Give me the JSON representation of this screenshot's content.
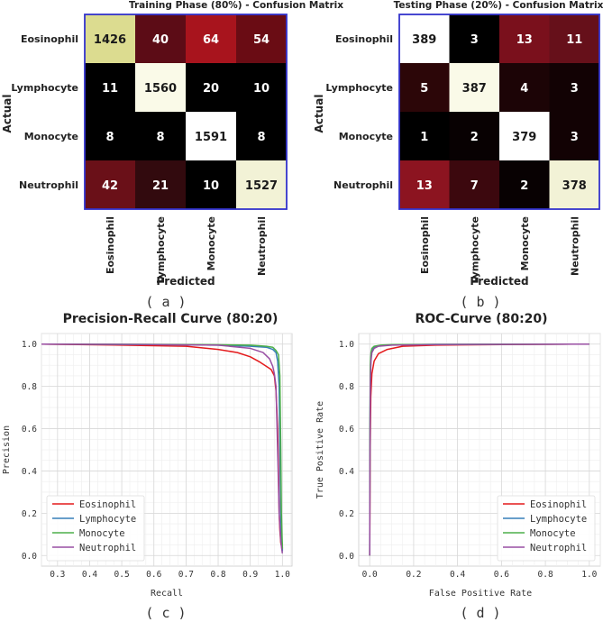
{
  "panel_labels": [
    "( a )",
    "( b )",
    "( c )",
    "( d )"
  ],
  "colors": {
    "eosinophil": "#e41a1c",
    "lymphocyte": "#377eb8",
    "monocyte": "#4daf4a",
    "neutrophil": "#984ea3",
    "matrix_border": "#3333cc"
  },
  "chart_data": [
    {
      "type": "heatmap",
      "title": "Training Phase (80%) - Confusion Matrix",
      "xlabel": "Predicted",
      "ylabel": "Actual",
      "row_labels": [
        "Eosinophil",
        "Lymphocyte",
        "Monocyte",
        "Neutrophil"
      ],
      "col_labels": [
        "Eosinophil",
        "Lymphocyte",
        "Monocyte",
        "Neutrophil"
      ],
      "matrix": [
        [
          1426,
          40,
          64,
          54
        ],
        [
          11,
          1560,
          20,
          10
        ],
        [
          8,
          8,
          1591,
          8
        ],
        [
          42,
          21,
          10,
          1527
        ]
      ],
      "cell_colors": [
        [
          "#dcdc90",
          "#5c0c16",
          "#a8141d",
          "#6a0c14"
        ],
        [
          "#000000",
          "#fafae8",
          "#000000",
          "#000000"
        ],
        [
          "#000000",
          "#000000",
          "#ffffff",
          "#000000"
        ],
        [
          "#6a1018",
          "#320a0e",
          "#000000",
          "#f2f2d6"
        ]
      ]
    },
    {
      "type": "heatmap",
      "title": "Testing Phase (20%) - Confusion Matrix",
      "xlabel": "Predicted",
      "ylabel": "Actual",
      "row_labels": [
        "Eosinophil",
        "Lymphocyte",
        "Monocyte",
        "Neutrophil"
      ],
      "col_labels": [
        "Eosinophil",
        "Lymphocyte",
        "Monocyte",
        "Neutrophil"
      ],
      "matrix": [
        [
          389,
          3,
          13,
          11
        ],
        [
          5,
          387,
          4,
          3
        ],
        [
          1,
          2,
          379,
          3
        ],
        [
          13,
          7,
          2,
          378
        ]
      ],
      "cell_colors": [
        [
          "#ffffff",
          "#000000",
          "#7a101c",
          "#66101a"
        ],
        [
          "#2c0608",
          "#fafae8",
          "#1c0406",
          "#120204"
        ],
        [
          "#000000",
          "#080102",
          "#ffffff",
          "#120204"
        ],
        [
          "#8c1420",
          "#3c080e",
          "#080102",
          "#f2f2d6"
        ]
      ]
    },
    {
      "type": "line",
      "title": "Precision-Recall Curve (80:20)",
      "xlabel": "Recall",
      "ylabel": "Precision",
      "xlim": [
        0.25,
        1.03
      ],
      "ylim": [
        -0.05,
        1.05
      ],
      "xticks": [
        0.3,
        0.4,
        0.5,
        0.6,
        0.7,
        0.8,
        0.9,
        1.0
      ],
      "yticks": [
        0.0,
        0.2,
        0.4,
        0.6,
        0.8,
        1.0
      ],
      "tick_labels_x": [
        "0.3",
        "0.4",
        "0.5",
        "0.6",
        "0.7",
        "0.8",
        "0.9",
        "1.0"
      ],
      "tick_labels_y": [
        "0.0",
        "0.2",
        "0.4",
        "0.6",
        "0.8",
        "1.0"
      ],
      "legend_position": "bottom-left",
      "series": [
        {
          "name": "Eosinophil",
          "color": "#e41a1c",
          "x": [
            0.25,
            0.5,
            0.7,
            0.8,
            0.86,
            0.9,
            0.93,
            0.95,
            0.965,
            0.975,
            0.98,
            0.985,
            0.988,
            0.99,
            0.992,
            0.995,
            0.998,
            1.0
          ],
          "y": [
            1.0,
            0.995,
            0.99,
            0.975,
            0.96,
            0.94,
            0.915,
            0.895,
            0.88,
            0.85,
            0.78,
            0.6,
            0.4,
            0.2,
            0.12,
            0.06,
            0.04,
            0.02
          ]
        },
        {
          "name": "Lymphocyte",
          "color": "#377eb8",
          "x": [
            0.25,
            0.6,
            0.8,
            0.9,
            0.95,
            0.97,
            0.98,
            0.985,
            0.99,
            0.992,
            0.995,
            0.997,
            1.0,
            1.0
          ],
          "y": [
            1.0,
            0.998,
            0.995,
            0.99,
            0.985,
            0.975,
            0.96,
            0.92,
            0.8,
            0.5,
            0.2,
            0.08,
            0.04,
            0.02
          ]
        },
        {
          "name": "Monocyte",
          "color": "#4daf4a",
          "x": [
            0.25,
            0.6,
            0.8,
            0.9,
            0.95,
            0.97,
            0.98,
            0.988,
            0.992,
            0.995,
            0.997,
            0.999,
            1.0,
            1.0
          ],
          "y": [
            1.0,
            0.999,
            0.997,
            0.995,
            0.99,
            0.985,
            0.97,
            0.95,
            0.85,
            0.5,
            0.2,
            0.08,
            0.05,
            0.03
          ]
        },
        {
          "name": "Neutrophil",
          "color": "#984ea3",
          "x": [
            0.25,
            0.6,
            0.8,
            0.9,
            0.94,
            0.96,
            0.97,
            0.975,
            0.98,
            0.985,
            0.99,
            0.995,
            0.998,
            1.0
          ],
          "y": [
            1.0,
            0.998,
            0.995,
            0.98,
            0.96,
            0.93,
            0.895,
            0.86,
            0.8,
            0.5,
            0.2,
            0.07,
            0.03,
            0.01
          ]
        }
      ]
    },
    {
      "type": "line",
      "title": "ROC-Curve (80:20)",
      "xlabel": "False Positive Rate",
      "ylabel": "True Positive Rate",
      "xlim": [
        -0.05,
        1.05
      ],
      "ylim": [
        -0.05,
        1.05
      ],
      "xticks": [
        0.0,
        0.2,
        0.4,
        0.6,
        0.8,
        1.0
      ],
      "yticks": [
        0.0,
        0.2,
        0.4,
        0.6,
        0.8,
        1.0
      ],
      "tick_labels_x": [
        "0.0",
        "0.2",
        "0.4",
        "0.6",
        "0.8",
        "1.0"
      ],
      "tick_labels_y": [
        "0.0",
        "0.2",
        "0.4",
        "0.6",
        "0.8",
        "1.0"
      ],
      "legend_position": "bottom-right",
      "series": [
        {
          "name": "Eosinophil",
          "color": "#e41a1c",
          "x": [
            0.0,
            0.002,
            0.005,
            0.01,
            0.02,
            0.04,
            0.08,
            0.15,
            0.3,
            0.6,
            1.0
          ],
          "y": [
            0.0,
            0.5,
            0.75,
            0.86,
            0.92,
            0.955,
            0.975,
            0.99,
            0.995,
            0.998,
            1.0
          ]
        },
        {
          "name": "Lymphocyte",
          "color": "#377eb8",
          "x": [
            0.0,
            0.001,
            0.003,
            0.006,
            0.01,
            0.02,
            0.04,
            0.1,
            0.3,
            1.0
          ],
          "y": [
            0.0,
            0.55,
            0.85,
            0.94,
            0.97,
            0.985,
            0.992,
            0.996,
            0.999,
            1.0
          ]
        },
        {
          "name": "Monocyte",
          "color": "#4daf4a",
          "x": [
            0.0,
            0.001,
            0.003,
            0.006,
            0.01,
            0.02,
            0.05,
            0.1,
            0.3,
            1.0
          ],
          "y": [
            0.0,
            0.6,
            0.9,
            0.96,
            0.98,
            0.99,
            0.995,
            0.998,
            0.999,
            1.0
          ]
        },
        {
          "name": "Neutrophil",
          "color": "#984ea3",
          "x": [
            0.0,
            0.001,
            0.003,
            0.006,
            0.01,
            0.02,
            0.04,
            0.1,
            0.3,
            1.0
          ],
          "y": [
            0.0,
            0.45,
            0.82,
            0.92,
            0.96,
            0.98,
            0.99,
            0.995,
            0.998,
            1.0
          ]
        }
      ]
    }
  ]
}
